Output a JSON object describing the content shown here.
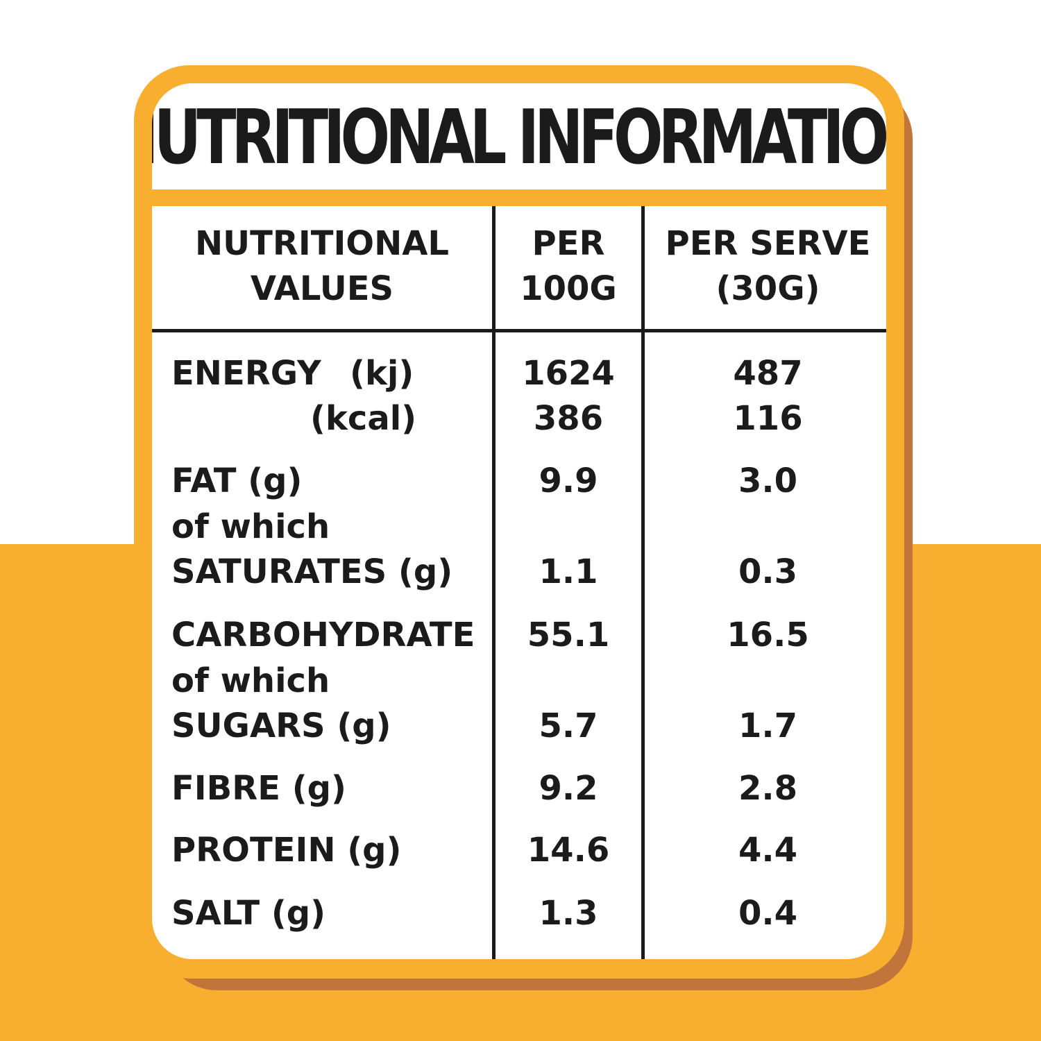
{
  "title": "NUTRITIONAL INFORMATION",
  "headers": {
    "col1_line1": "NUTRITIONAL",
    "col1_line2": "VALUES",
    "col2_line1": "PER",
    "col2_line2": "100G",
    "col3_line1": "PER SERVE",
    "col3_line2": "(30G)"
  },
  "rows": {
    "energy_label": "ENERGY",
    "energy_kj_unit": "(kj)",
    "energy_kcal_unit": "(kcal)",
    "energy_kj_100g": "1624",
    "energy_kcal_100g": "386",
    "energy_kj_serve": "487",
    "energy_kcal_serve": "116",
    "fat_label": "FAT (g)",
    "fat_100g": "9.9",
    "fat_serve": "3.0",
    "fat_of_which": "of which",
    "saturates_label": "SATURATES (g)",
    "saturates_100g": "1.1",
    "saturates_serve": "0.3",
    "carb_label": "CARBOHYDRATE",
    "carb_100g": "55.1",
    "carb_serve": "16.5",
    "carb_of_which": "of which",
    "sugars_label": "SUGARS (g)",
    "sugars_100g": "5.7",
    "sugars_serve": "1.7",
    "fibre_label": "FIBRE (g)",
    "fibre_100g": "9.2",
    "fibre_serve": "2.8",
    "protein_label": "PROTEIN (g)",
    "protein_100g": "14.6",
    "protein_serve": "4.4",
    "salt_label": "SALT (g)",
    "salt_100g": "1.3",
    "salt_serve": "0.4"
  },
  "colors": {
    "accent": "#f8ae2f",
    "shadow": "#c2753a",
    "text": "#1b1b1b",
    "background": "#ffffff"
  }
}
